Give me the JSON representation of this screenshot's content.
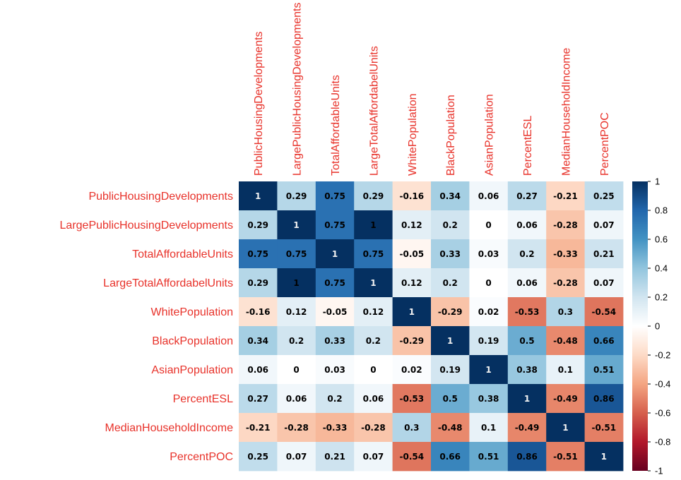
{
  "chart_data": {
    "type": "heatmap",
    "variables": [
      "PublicHousingDevelopments",
      "LargePublicHousingDevelopments",
      "TotalAffordableUnits",
      "LargeTotalAffordabelUnits",
      "WhitePopulation",
      "BlackPopulation",
      "AsianPopulation",
      "PercentESL",
      "MedianHouseholdIncome",
      "PercentPOC"
    ],
    "matrix": [
      [
        1,
        0.29,
        0.75,
        0.29,
        -0.16,
        0.34,
        0.06,
        0.27,
        -0.21,
        0.25
      ],
      [
        0.29,
        1,
        0.75,
        1,
        0.12,
        0.2,
        0,
        0.06,
        -0.28,
        0.07
      ],
      [
        0.75,
        0.75,
        1,
        0.75,
        -0.05,
        0.33,
        0.03,
        0.2,
        -0.33,
        0.21
      ],
      [
        0.29,
        1,
        0.75,
        1,
        0.12,
        0.2,
        0,
        0.06,
        -0.28,
        0.07
      ],
      [
        -0.16,
        0.12,
        -0.05,
        0.12,
        1,
        -0.29,
        0.02,
        -0.53,
        0.3,
        -0.54
      ],
      [
        0.34,
        0.2,
        0.33,
        0.2,
        -0.29,
        1,
        0.19,
        0.5,
        -0.48,
        0.66
      ],
      [
        0.06,
        0,
        0.03,
        0,
        0.02,
        0.19,
        1,
        0.38,
        0.1,
        0.51
      ],
      [
        0.27,
        0.06,
        0.2,
        0.06,
        -0.53,
        0.5,
        0.38,
        1,
        -0.49,
        0.86
      ],
      [
        -0.21,
        -0.28,
        -0.33,
        -0.28,
        0.3,
        -0.48,
        0.1,
        -0.49,
        1,
        -0.51
      ],
      [
        0.25,
        0.07,
        0.21,
        0.07,
        -0.54,
        0.66,
        0.51,
        0.86,
        -0.51,
        1
      ]
    ],
    "color_scale": {
      "range": [
        -1,
        1
      ],
      "ticks": [
        "1",
        "0.8",
        "0.6",
        "0.4",
        "0.2",
        "0",
        "-0.2",
        "-0.4",
        "-0.6",
        "-0.8",
        "-1"
      ],
      "tick_values": [
        1,
        0.8,
        0.6,
        0.4,
        0.2,
        0,
        -0.2,
        -0.4,
        -0.6,
        -0.8,
        -1
      ],
      "stops": [
        "#67001f",
        "#b2182b",
        "#d6604d",
        "#f4a582",
        "#fddbc7",
        "#ffffff",
        "#d1e5f0",
        "#92c5de",
        "#4393c3",
        "#2166ac",
        "#053061"
      ]
    },
    "label_color": "#e8322a",
    "legend_position": "right"
  }
}
